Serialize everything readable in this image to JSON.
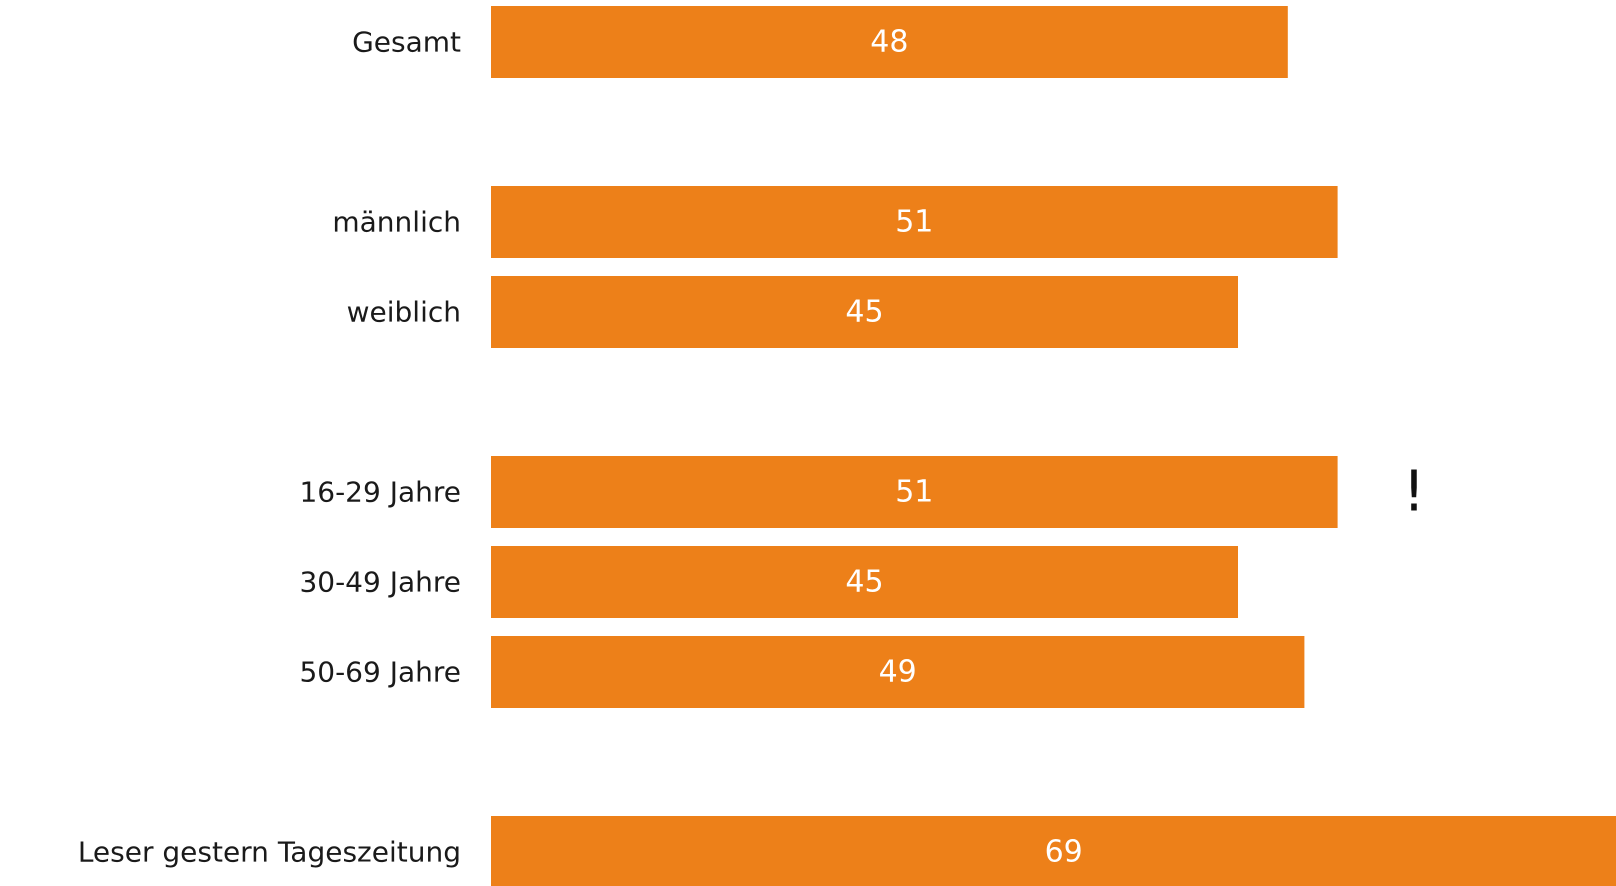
{
  "chart_data": {
    "type": "bar",
    "orientation": "horizontal",
    "categories": [
      "Gesamt",
      "männlich",
      "weiblich",
      "16-29 Jahre",
      "30-49 Jahre",
      "50-69 Jahre",
      "Leser gestern Tageszeitung"
    ],
    "values": [
      48,
      51,
      45,
      51,
      45,
      49,
      69
    ],
    "data_labels": [
      "48",
      "51",
      "45",
      "51",
      "45",
      "49",
      "69"
    ],
    "groups": [
      [
        "Gesamt"
      ],
      [
        "männlich",
        "weiblich"
      ],
      [
        "16-29 Jahre",
        "30-49 Jahre",
        "50-69 Jahre"
      ],
      [
        "Leser gestern Tageszeitung"
      ]
    ],
    "annotations": [
      {
        "text": "!",
        "category": "16-29 Jahre"
      }
    ],
    "title": "",
    "xlabel": "",
    "ylabel": "",
    "xlim": [
      0,
      69
    ],
    "grid": false,
    "legend": "none",
    "colors": {
      "bar": "#ED8019",
      "value_text": "#FFFFFF",
      "category_text": "#1A1A1A",
      "annotation_text": "#111111"
    }
  }
}
